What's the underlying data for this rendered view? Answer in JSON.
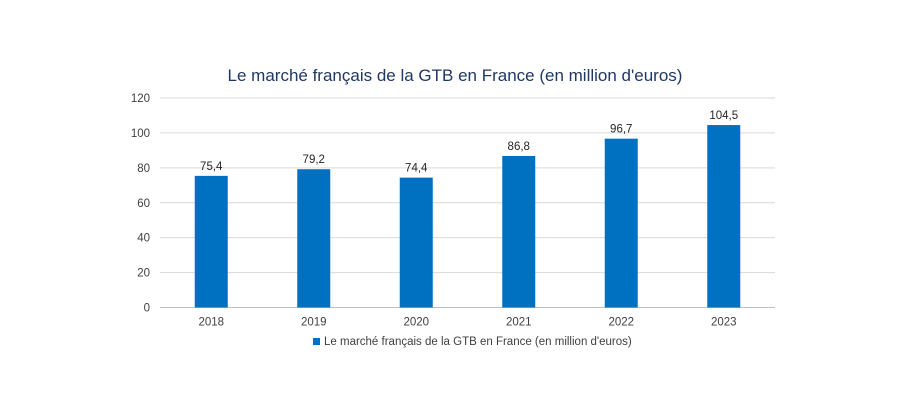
{
  "chart_data": {
    "type": "bar",
    "title": "Le marché français de la GTB en France (en million d'euros)",
    "categories": [
      "2018",
      "2019",
      "2020",
      "2021",
      "2022",
      "2023"
    ],
    "series": [
      {
        "name": "Le marché français de la GTB en France (en million d'euros)",
        "values": [
          75.4,
          79.2,
          74.4,
          86.8,
          96.7,
          104.5
        ],
        "labels": [
          "75,4",
          "79,2",
          "74,4",
          "86,8",
          "96,7",
          "104,5"
        ],
        "color": "#0070c0"
      }
    ],
    "xlabel": "",
    "ylabel": "",
    "ylim": [
      0,
      120
    ],
    "yticks": [
      0,
      20,
      40,
      60,
      80,
      100,
      120
    ],
    "grid": true,
    "legend": "bottom"
  }
}
